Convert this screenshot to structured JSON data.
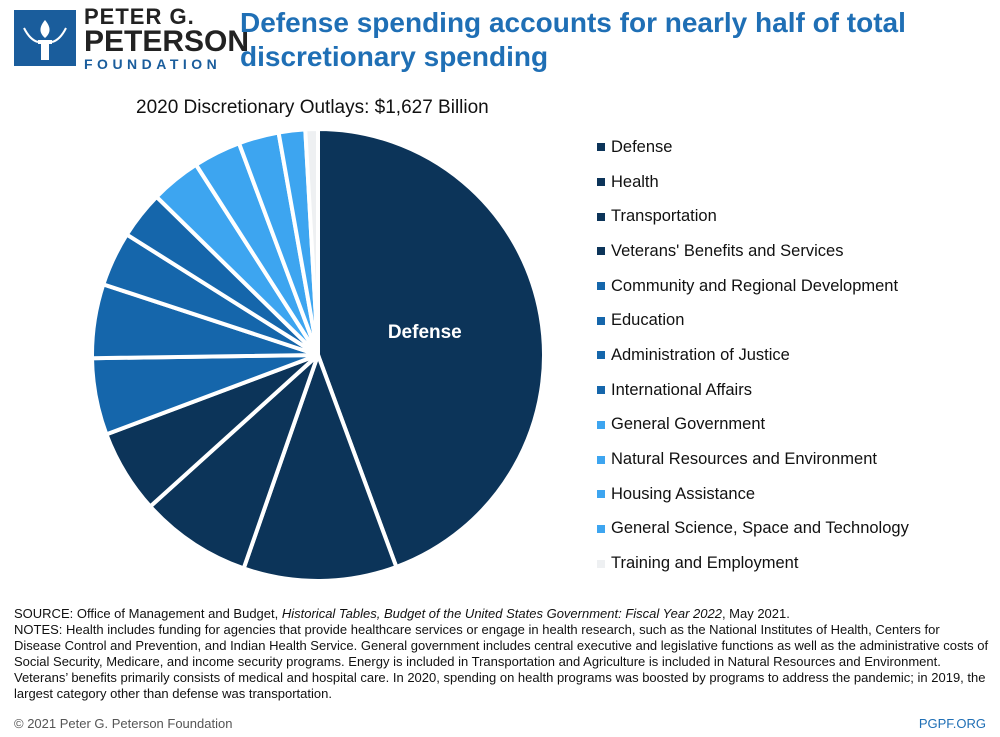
{
  "header": {
    "logo_line1": "PETER G.",
    "logo_line2": "PETERSON",
    "logo_line3": "FOUNDATION",
    "headline": "Defense spending accounts for nearly half of total discretionary spending"
  },
  "chart_data": {
    "type": "pie",
    "title": "2020 Discretionary Outlays: $1,627 Billion",
    "center_label": "Defense",
    "categories": [
      "Defense",
      "Health",
      "Transportation",
      "Veterans' Benefits and Services",
      "Community and Regional Development",
      "Education",
      "Administration of Justice",
      "International Affairs",
      "General Government",
      "Natural Resources and Environment",
      "Housing Assistance",
      "General Science, Space and Technology",
      "Training and Employment"
    ],
    "values": [
      44.5,
      11.0,
      8.0,
      6.0,
      5.5,
      5.3,
      3.9,
      3.4,
      3.6,
      3.4,
      2.9,
      1.9,
      0.9
    ],
    "colors": [
      "#0c3459",
      "#0c3459",
      "#0c3459",
      "#0c3459",
      "#1566ab",
      "#1566ab",
      "#1566ab",
      "#1566ab",
      "#3da5f0",
      "#3da5f0",
      "#3da5f0",
      "#3da5f0",
      "#eef0f2"
    ],
    "legend_position": "right"
  },
  "notes": {
    "source_prefix": "SOURCE: Office of Management and Budget, ",
    "source_title": "Historical Tables, Budget of the United States Government: Fiscal Year 2022",
    "source_suffix": ", May 2021.",
    "notes_text": "NOTES: Health includes funding for agencies that provide healthcare services or engage in health research, such as the National Institutes of Health, Centers for Disease Control and Prevention, and Indian Health Service. General government includes central executive and legislative functions as well as the administrative costs of Social Security, Medicare, and income security programs. Energy is included in Transportation and Agriculture is included in Natural Resources and Environment. Veterans’ benefits primarily consists of medical and hospital care. In 2020, spending on health programs was boosted by programs to address the pandemic; in 2019, the largest category other than defense was transportation."
  },
  "footer": {
    "copyright": "© 2021 Peter G. Peterson Foundation",
    "site": "PGPF.ORG"
  }
}
